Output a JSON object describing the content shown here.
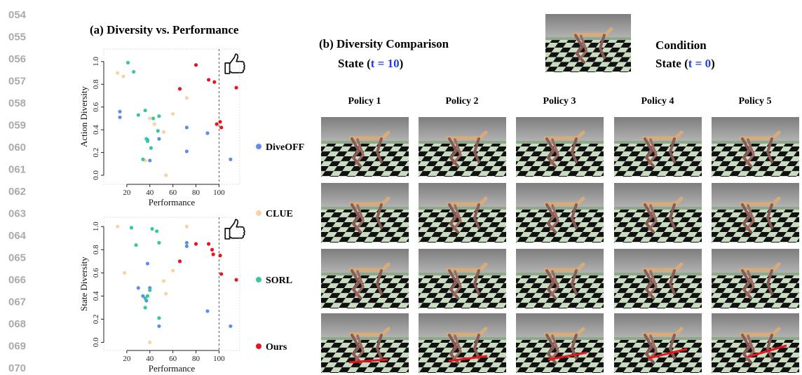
{
  "line_numbers": [
    "054",
    "055",
    "056",
    "057",
    "058",
    "059",
    "060",
    "061",
    "062",
    "063",
    "064",
    "065",
    "066",
    "067",
    "068",
    "069",
    "070"
  ],
  "panel_a": {
    "title": "(a) Diversity vs. Performance"
  },
  "chart_data": [
    {
      "type": "scatter",
      "x_label": "Performance",
      "y_label": "Action Diversity",
      "xlim": [
        0,
        118
      ],
      "ylim": [
        -0.08,
        1.11
      ],
      "xticks": [
        20,
        40,
        60,
        80,
        100
      ],
      "yticks": [
        {
          "value": 0,
          "label": "0.0"
        },
        0.2,
        0.4,
        0.6,
        0.8,
        {
          "value": 1,
          "label": "1.0"
        }
      ],
      "reference_x": 100,
      "series": [
        {
          "name": "DiveOFF",
          "color": "#5b8fe8",
          "x": [
            14,
            14,
            38,
            40,
            48,
            72,
            72,
            90,
            110
          ],
          "y": [
            0.56,
            0.51,
            0.31,
            0.13,
            0.32,
            0.42,
            0.21,
            0.37,
            0.14
          ]
        },
        {
          "name": "CLUE",
          "color": "#f6d4a6",
          "x": [
            12,
            17,
            40,
            44,
            52,
            54,
            60,
            72,
            36
          ],
          "y": [
            0.9,
            0.87,
            0.5,
            0.45,
            0.38,
            0.0,
            0.54,
            0.68,
            0.13
          ]
        },
        {
          "name": "SORL",
          "color": "#36c99c",
          "x": [
            21,
            26,
            36,
            37,
            38,
            41,
            43,
            47,
            48,
            34,
            30
          ],
          "y": [
            0.99,
            0.91,
            0.57,
            0.32,
            0.3,
            0.24,
            0.5,
            0.39,
            0.52,
            0.14,
            0.53
          ]
        },
        {
          "name": "Ours",
          "color": "#e8141e",
          "x": [
            80,
            91,
            96,
            115,
            66,
            98,
            101,
            102
          ],
          "y": [
            0.97,
            0.84,
            0.82,
            0.77,
            0.76,
            0.45,
            0.47,
            0.42
          ]
        }
      ]
    },
    {
      "type": "scatter",
      "x_label": "Performance",
      "y_label": "State Diversity",
      "xlim": [
        0,
        118
      ],
      "ylim": [
        -0.07,
        1.08
      ],
      "xticks": [
        20,
        40,
        60,
        80,
        100
      ],
      "yticks": [
        {
          "value": 0,
          "label": "0.0"
        },
        0.2,
        0.4,
        0.6,
        0.8,
        {
          "value": 1,
          "label": "1.0"
        }
      ],
      "reference_x": 100,
      "series": [
        {
          "color": "#5b8fe8",
          "x": [
            30,
            34,
            38,
            40,
            37,
            48,
            72,
            72,
            90,
            110
          ],
          "y": [
            0.47,
            0.4,
            0.68,
            0.47,
            0.36,
            0.14,
            0.83,
            0.86,
            0.27,
            0.14
          ]
        },
        {
          "color": "#f6d4a6",
          "x": [
            12,
            18,
            40,
            52,
            54,
            60,
            72
          ],
          "y": [
            1.0,
            0.6,
            0.0,
            0.53,
            0.42,
            0.62,
            1.0
          ]
        },
        {
          "color": "#36c99c",
          "x": [
            24,
            28,
            36,
            38,
            40,
            42,
            46,
            48,
            48,
            36
          ],
          "y": [
            0.99,
            0.84,
            0.3,
            0.4,
            0.45,
            0.98,
            0.96,
            0.86,
            0.21,
            0.38
          ]
        },
        {
          "color": "#e8141e",
          "x": [
            66,
            80,
            91,
            94,
            95,
            101,
            102,
            115
          ],
          "y": [
            0.7,
            0.85,
            0.85,
            0.8,
            0.76,
            0.75,
            0.59,
            0.54
          ]
        }
      ]
    }
  ],
  "panel_b": {
    "title": "(b) Diversity  Comparison",
    "state_prefix": "State (",
    "state_time": "t = 10",
    "state_suffix": ")",
    "condition_title": "Condition",
    "condition_prefix": "State (",
    "condition_time": "t = 0",
    "condition_suffix": ")",
    "policies": [
      "Policy 1",
      "Policy 2",
      "Policy 3",
      "Policy 4",
      "Policy 5"
    ]
  }
}
